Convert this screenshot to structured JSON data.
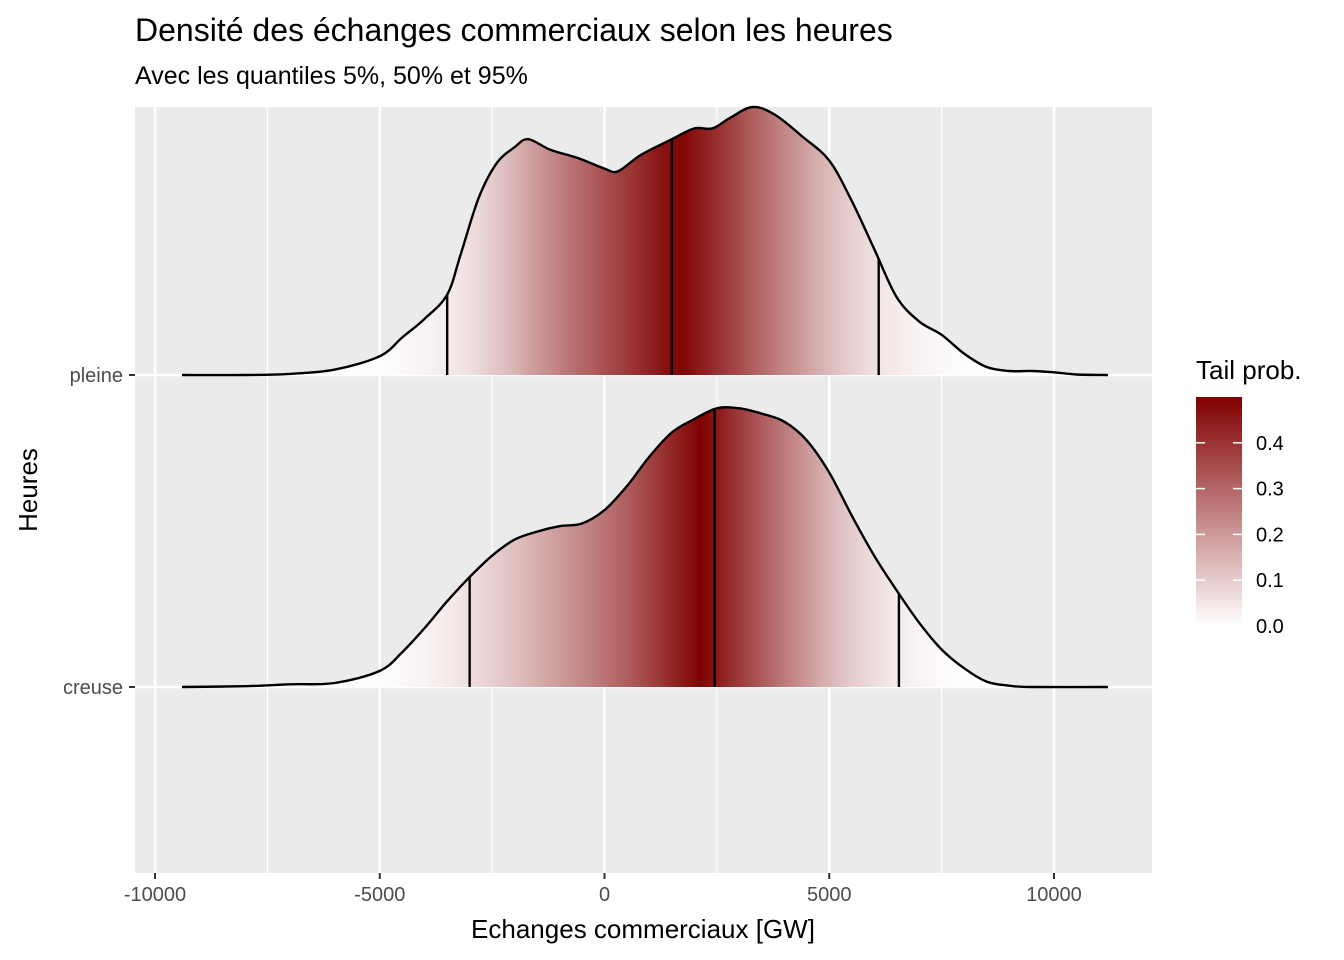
{
  "chart_data": {
    "type": "ridgeline-density",
    "title": "Densité des échanges commerciaux selon les heures",
    "subtitle": "Avec les quantiles 5%, 50% et 95%",
    "xlabel": "Echanges commerciaux [GW]",
    "ylabel": "Heures",
    "xlim": [
      -11000,
      12200
    ],
    "x_ticks": [
      -10000,
      -5000,
      0,
      5000,
      10000
    ],
    "x_tick_labels": [
      "-10000",
      "-5000",
      "0",
      "5000",
      "10000"
    ],
    "categories": [
      "creuse",
      "pleine"
    ],
    "grid": true,
    "legend": {
      "title": "Tail prob.",
      "position": "right",
      "breaks": [
        0.0,
        0.1,
        0.2,
        0.3,
        0.4
      ],
      "labels": [
        "0.0",
        "0.1",
        "0.2",
        "0.3",
        "0.4"
      ],
      "max": 0.5,
      "color_low": "#ffffff",
      "color_high": "#800000"
    },
    "series": [
      {
        "name": "pleine",
        "quantiles": [
          -3500,
          1500,
          6100
        ],
        "density_relative": [
          [
            -9400,
            0.0
          ],
          [
            -8000,
            0.0
          ],
          [
            -7000,
            0.004
          ],
          [
            -6000,
            0.02
          ],
          [
            -5000,
            0.07
          ],
          [
            -4500,
            0.14
          ],
          [
            -4000,
            0.21
          ],
          [
            -3500,
            0.3
          ],
          [
            -3200,
            0.45
          ],
          [
            -2800,
            0.66
          ],
          [
            -2400,
            0.79
          ],
          [
            -2000,
            0.85
          ],
          [
            -1700,
            0.88
          ],
          [
            -1200,
            0.84
          ],
          [
            -600,
            0.81
          ],
          [
            0,
            0.77
          ],
          [
            300,
            0.76
          ],
          [
            800,
            0.82
          ],
          [
            1500,
            0.88
          ],
          [
            2000,
            0.92
          ],
          [
            2400,
            0.92
          ],
          [
            2800,
            0.96
          ],
          [
            3300,
            1.0
          ],
          [
            3800,
            0.97
          ],
          [
            4400,
            0.89
          ],
          [
            5000,
            0.8
          ],
          [
            5500,
            0.65
          ],
          [
            6000,
            0.47
          ],
          [
            6500,
            0.29
          ],
          [
            7000,
            0.2
          ],
          [
            7500,
            0.15
          ],
          [
            8000,
            0.08
          ],
          [
            8500,
            0.03
          ],
          [
            9000,
            0.015
          ],
          [
            9500,
            0.015
          ],
          [
            10000,
            0.01
          ],
          [
            10500,
            0.002
          ],
          [
            11200,
            0.0
          ]
        ]
      },
      {
        "name": "creuse",
        "quantiles": [
          -3000,
          2450,
          6550
        ],
        "density_relative": [
          [
            -9400,
            0.0
          ],
          [
            -8000,
            0.003
          ],
          [
            -7000,
            0.01
          ],
          [
            -6000,
            0.015
          ],
          [
            -5000,
            0.06
          ],
          [
            -4500,
            0.13
          ],
          [
            -4000,
            0.22
          ],
          [
            -3500,
            0.32
          ],
          [
            -3000,
            0.41
          ],
          [
            -2500,
            0.49
          ],
          [
            -2000,
            0.55
          ],
          [
            -1500,
            0.58
          ],
          [
            -1000,
            0.6
          ],
          [
            -500,
            0.61
          ],
          [
            0,
            0.66
          ],
          [
            500,
            0.75
          ],
          [
            1000,
            0.86
          ],
          [
            1500,
            0.95
          ],
          [
            2000,
            1.0
          ],
          [
            2500,
            1.04
          ],
          [
            3000,
            1.04
          ],
          [
            3500,
            1.02
          ],
          [
            4000,
            0.99
          ],
          [
            4500,
            0.92
          ],
          [
            5000,
            0.8
          ],
          [
            5500,
            0.64
          ],
          [
            6000,
            0.49
          ],
          [
            6500,
            0.36
          ],
          [
            7000,
            0.24
          ],
          [
            7500,
            0.14
          ],
          [
            8000,
            0.07
          ],
          [
            8500,
            0.02
          ],
          [
            9000,
            0.005
          ],
          [
            9500,
            0.0
          ],
          [
            11200,
            0.0
          ]
        ]
      }
    ]
  }
}
